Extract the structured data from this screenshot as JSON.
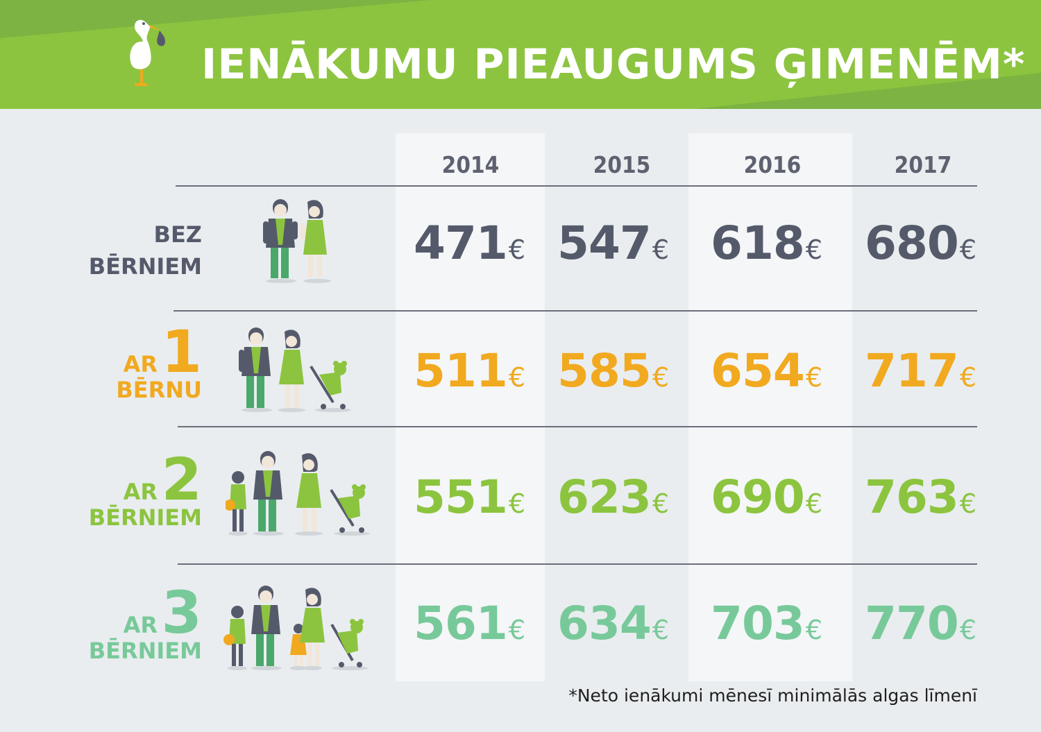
{
  "header": {
    "title": "IENĀKUMU PIEAUGUMS ĢIMENĒM*",
    "bg_color": "#8cc43f",
    "bg_color_dark": "#7cb342"
  },
  "chart_data": {
    "type": "table",
    "title": "IENĀKUMU PIEAUGUMS ĢIMENĒM*",
    "unit": "€",
    "columns": [
      "2014",
      "2015",
      "2016",
      "2017"
    ],
    "rows": [
      {
        "label_top": "BEZ",
        "label_num": "",
        "label_bottom": "BĒRNIEM",
        "color": "#555a6b",
        "values": [
          "471",
          "547",
          "618",
          "680"
        ]
      },
      {
        "label_top": "AR",
        "label_num": "1",
        "label_bottom": "BĒRNU",
        "color": "#f1a91f",
        "values": [
          "511",
          "585",
          "654",
          "717"
        ]
      },
      {
        "label_top": "AR",
        "label_num": "2",
        "label_bottom": "BĒRNIEM",
        "color": "#8cc43f",
        "values": [
          "551",
          "623",
          "690",
          "763"
        ]
      },
      {
        "label_top": "AR",
        "label_num": "3",
        "label_bottom": "BĒRNIEM",
        "color": "#78c99a",
        "values": [
          "561",
          "634",
          "703",
          "770"
        ]
      }
    ]
  },
  "footnote": "*Neto ienākumi mēnesī minimālās algas līmenī",
  "icons": {
    "header": "stork-icon",
    "rows": [
      "couple-icon",
      "family-one-child-icon",
      "family-two-children-icon",
      "family-three-children-icon"
    ]
  }
}
